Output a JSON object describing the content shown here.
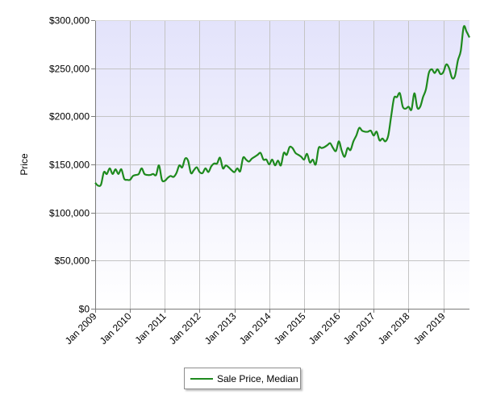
{
  "colors": {
    "series": "#1e8a1e",
    "plot_bg_top": "#e3e3fb",
    "plot_bg_bottom": "#ffffff",
    "grid": "#c4c4c4"
  },
  "chart_data": {
    "type": "line",
    "title": "",
    "xlabel": "",
    "ylabel": "Price",
    "ylim": [
      0,
      300000
    ],
    "xlim": [
      "2009-01",
      "2019-10"
    ],
    "grid": true,
    "legend_position": "bottom",
    "yticks": [
      "$0",
      "$50,000",
      "$100,000",
      "$150,000",
      "$200,000",
      "$250,000",
      "$300,000"
    ],
    "ytick_values": [
      0,
      50000,
      100000,
      150000,
      200000,
      250000,
      300000
    ],
    "xticks": [
      "Jan 2009",
      "Jan 2010",
      "Jan 2011",
      "Jan 2012",
      "Jan 2013",
      "Jan 2014",
      "Jan 2015",
      "Jan 2016",
      "Jan 2017",
      "Jan 2018",
      "Jan 2019"
    ],
    "series": [
      {
        "name": "Sale Price, Median",
        "x": [
          "2009-01",
          "2009-02",
          "2009-03",
          "2009-04",
          "2009-05",
          "2009-06",
          "2009-07",
          "2009-08",
          "2009-09",
          "2009-10",
          "2009-11",
          "2009-12",
          "2010-01",
          "2010-02",
          "2010-03",
          "2010-04",
          "2010-05",
          "2010-06",
          "2010-07",
          "2010-08",
          "2010-09",
          "2010-10",
          "2010-11",
          "2010-12",
          "2011-01",
          "2011-02",
          "2011-03",
          "2011-04",
          "2011-05",
          "2011-06",
          "2011-07",
          "2011-08",
          "2011-09",
          "2011-10",
          "2011-11",
          "2011-12",
          "2012-01",
          "2012-02",
          "2012-03",
          "2012-04",
          "2012-05",
          "2012-06",
          "2012-07",
          "2012-08",
          "2012-09",
          "2012-10",
          "2012-11",
          "2012-12",
          "2013-01",
          "2013-02",
          "2013-03",
          "2013-04",
          "2013-05",
          "2013-06",
          "2013-07",
          "2013-08",
          "2013-09",
          "2013-10",
          "2013-11",
          "2013-12",
          "2014-01",
          "2014-02",
          "2014-03",
          "2014-04",
          "2014-05",
          "2014-06",
          "2014-07",
          "2014-08",
          "2014-09",
          "2014-10",
          "2014-11",
          "2014-12",
          "2015-01",
          "2015-02",
          "2015-03",
          "2015-04",
          "2015-05",
          "2015-06",
          "2015-07",
          "2015-08",
          "2015-09",
          "2015-10",
          "2015-11",
          "2015-12",
          "2016-01",
          "2016-02",
          "2016-03",
          "2016-04",
          "2016-05",
          "2016-06",
          "2016-07",
          "2016-08",
          "2016-09",
          "2016-10",
          "2016-11",
          "2016-12",
          "2017-01",
          "2017-02",
          "2017-03",
          "2017-04",
          "2017-05",
          "2017-06",
          "2017-07",
          "2017-08",
          "2017-09",
          "2017-10",
          "2017-11",
          "2017-12",
          "2018-01",
          "2018-02",
          "2018-03",
          "2018-04",
          "2018-05",
          "2018-06",
          "2018-07",
          "2018-08",
          "2018-09",
          "2018-10",
          "2018-11",
          "2018-12",
          "2019-01",
          "2019-02",
          "2019-03",
          "2019-04",
          "2019-05",
          "2019-06",
          "2019-07",
          "2019-08",
          "2019-09",
          "2019-10"
        ],
        "values": [
          131000,
          128000,
          129000,
          142000,
          140000,
          146000,
          140000,
          145000,
          140000,
          145000,
          135000,
          134000,
          134000,
          138000,
          139000,
          140000,
          146000,
          140000,
          139000,
          139000,
          140000,
          139000,
          149000,
          134000,
          133000,
          136000,
          138000,
          137000,
          141000,
          149000,
          147000,
          156000,
          154000,
          141000,
          144000,
          147000,
          142000,
          141000,
          146000,
          142000,
          148000,
          151000,
          151000,
          157000,
          146000,
          149000,
          147000,
          144000,
          142000,
          146000,
          143000,
          157000,
          155000,
          153000,
          156000,
          158000,
          160000,
          162000,
          155000,
          155000,
          150000,
          155000,
          149000,
          154000,
          149000,
          162000,
          160000,
          168000,
          167000,
          162000,
          160000,
          158000,
          155000,
          161000,
          152000,
          155000,
          150000,
          167000,
          167000,
          168000,
          170000,
          172000,
          167000,
          164000,
          174000,
          164000,
          158000,
          167000,
          165000,
          174000,
          180000,
          188000,
          185000,
          184000,
          184000,
          185000,
          180000,
          184000,
          175000,
          177000,
          174000,
          180000,
          200000,
          219000,
          220000,
          224000,
          210000,
          208000,
          210000,
          207000,
          224000,
          209000,
          210000,
          220000,
          228000,
          245000,
          249000,
          245000,
          249000,
          244000,
          246000,
          254000,
          250000,
          240000,
          242000,
          258000,
          268000,
          293000,
          288000,
          282000
        ]
      }
    ]
  },
  "legend": {
    "label": "Sale Price, Median"
  }
}
